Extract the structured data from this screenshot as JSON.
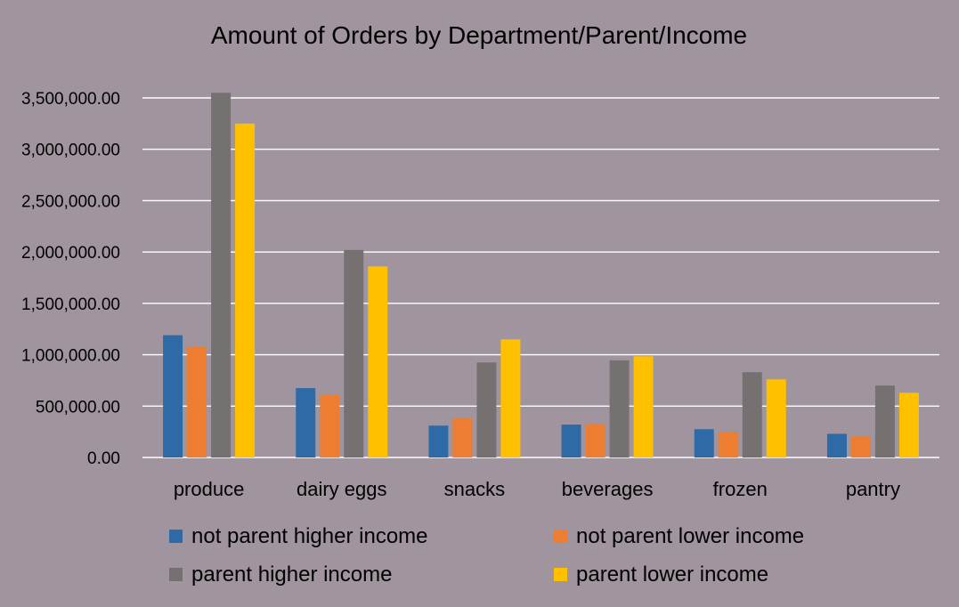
{
  "chart_data": {
    "type": "bar",
    "title": "Amount of Orders by Department/Parent/Income",
    "xlabel": "",
    "ylabel": "",
    "ylim": [
      0,
      3500000
    ],
    "yticks": [
      0,
      500000,
      1000000,
      1500000,
      2000000,
      2500000,
      3000000,
      3500000
    ],
    "ytick_labels": [
      "0.00",
      "500,000.00",
      "1,000,000.00",
      "1,500,000.00",
      "2,000,000.00",
      "2,500,000.00",
      "3,000,000.00",
      "3,500,000.00"
    ],
    "grid": true,
    "legend_position": "bottom",
    "categories": [
      "produce",
      "dairy eggs",
      "snacks",
      "beverages",
      "frozen",
      "pantry"
    ],
    "series": [
      {
        "name": "not parent higher income",
        "color": "#2e6aa6",
        "values": [
          1190000,
          675000,
          310000,
          320000,
          275000,
          230000
        ]
      },
      {
        "name": "not parent lower income",
        "color": "#ed7d31",
        "values": [
          1080000,
          615000,
          380000,
          325000,
          250000,
          205000
        ]
      },
      {
        "name": "parent higher income",
        "color": "#767171",
        "values": [
          3550000,
          2020000,
          925000,
          945000,
          830000,
          700000
        ]
      },
      {
        "name": "parent lower income",
        "color": "#ffc000",
        "values": [
          3250000,
          1860000,
          1150000,
          985000,
          760000,
          630000
        ]
      }
    ]
  }
}
